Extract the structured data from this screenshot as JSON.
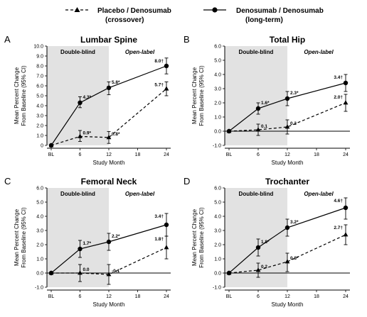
{
  "legend": {
    "series_a": {
      "line1": "Placebo / Denosumab",
      "line2": "(crossover)"
    },
    "series_b": {
      "line1": "Denosumab / Denosumab",
      "line2": "(long-term)"
    }
  },
  "chart_data": [
    {
      "type": "line",
      "letter": "A",
      "title": "Lumbar Spine",
      "xlabel": "Study Month",
      "ylabel": [
        "Mean Percent Change",
        "From Baseline (95% CI)"
      ],
      "categories": [
        "BL",
        "6",
        "12",
        "18",
        "24"
      ],
      "x": [
        0,
        6,
        12,
        18,
        24
      ],
      "ylim": [
        0,
        10
      ],
      "yticks": [
        0,
        1,
        2,
        3,
        4,
        5,
        6,
        7,
        8,
        9,
        10
      ],
      "ytick_labels": [
        "0",
        "1.0",
        "2.0",
        "3.0",
        "4.0",
        "5.0",
        "6.0",
        "7.0",
        "8.0",
        "9.0",
        "10.0"
      ],
      "zero_line": false,
      "regions": [
        "Double-blind",
        "Open-label"
      ],
      "series": [
        {
          "marker": "triangle",
          "style": "dashed",
          "x": [
            0,
            6,
            12,
            24
          ],
          "y": [
            0,
            0.9,
            0.8,
            5.7
          ],
          "ci": [
            null,
            [
              0.4,
              1.5
            ],
            [
              0.2,
              1.4
            ],
            [
              5.0,
              6.4
            ]
          ],
          "labels": [
            "",
            "0.9*",
            "0.8*",
            "5.7†"
          ]
        },
        {
          "marker": "circle",
          "style": "solid",
          "x": [
            0,
            6,
            12,
            24
          ],
          "y": [
            0,
            4.3,
            5.8,
            8.0
          ],
          "ci": [
            null,
            [
              3.8,
              4.9
            ],
            [
              5.1,
              6.4
            ],
            [
              7.2,
              8.8
            ]
          ],
          "labels": [
            "",
            "4.3*",
            "5.8*",
            "8.0†"
          ]
        }
      ]
    },
    {
      "type": "line",
      "letter": "B",
      "title": "Total Hip",
      "xlabel": "Study Month",
      "ylabel": [
        "Mean Percent Change",
        "From Baseline (95% CI)"
      ],
      "categories": [
        "BL",
        "6",
        "12",
        "18",
        "24"
      ],
      "x": [
        0,
        6,
        12,
        18,
        24
      ],
      "ylim": [
        -1,
        6
      ],
      "yticks": [
        -1,
        0,
        1,
        2,
        3,
        4,
        5,
        6
      ],
      "ytick_labels": [
        "-1.0",
        "0.0",
        "1.0",
        "2.0",
        "3.0",
        "4.0",
        "5.0",
        "6.0"
      ],
      "zero_line": true,
      "regions": [
        "Double-blind",
        "Open-label"
      ],
      "series": [
        {
          "marker": "triangle",
          "style": "dashed",
          "x": [
            0,
            6,
            12,
            24
          ],
          "y": [
            0,
            0.1,
            0.3,
            2.0
          ],
          "ci": [
            null,
            [
              -0.3,
              0.5
            ],
            [
              -0.2,
              0.8
            ],
            [
              1.4,
              2.6
            ]
          ],
          "labels": [
            "",
            "0.1",
            "0.3",
            "2.0†"
          ]
        },
        {
          "marker": "circle",
          "style": "solid",
          "x": [
            0,
            6,
            12,
            24
          ],
          "y": [
            0,
            1.6,
            2.3,
            3.4
          ],
          "ci": [
            null,
            [
              1.2,
              2.0
            ],
            [
              1.8,
              2.8
            ],
            [
              2.8,
              4.0
            ]
          ],
          "labels": [
            "",
            "1.6*",
            "2.3*",
            "3.4†"
          ]
        }
      ]
    },
    {
      "type": "line",
      "letter": "C",
      "title": "Femoral Neck",
      "xlabel": "Study Month",
      "ylabel": [
        "Mean Percent Change",
        "From Baseline (95% CI)"
      ],
      "categories": [
        "BL",
        "6",
        "12",
        "18",
        "24"
      ],
      "x": [
        0,
        6,
        12,
        18,
        24
      ],
      "ylim": [
        -1,
        6
      ],
      "yticks": [
        -1,
        0,
        1,
        2,
        3,
        4,
        5,
        6
      ],
      "ytick_labels": [
        "-1.0",
        "0.0",
        "1.0",
        "2.0",
        "3.0",
        "4.0",
        "5.0",
        "6.0"
      ],
      "zero_line": true,
      "regions": [
        "Double-blind",
        "Open-label"
      ],
      "series": [
        {
          "marker": "triangle",
          "style": "dashed",
          "x": [
            0,
            6,
            12,
            24
          ],
          "y": [
            0,
            0.0,
            -0.1,
            1.8
          ],
          "ci": [
            null,
            [
              -0.6,
              0.6
            ],
            [
              -0.8,
              0.6
            ],
            [
              1.0,
              2.6
            ]
          ],
          "labels": [
            "",
            "0.0",
            "-0.1",
            "1.8†"
          ]
        },
        {
          "marker": "circle",
          "style": "solid",
          "x": [
            0,
            6,
            12,
            24
          ],
          "y": [
            0,
            1.7,
            2.2,
            3.4
          ],
          "ci": [
            null,
            [
              1.1,
              2.3
            ],
            [
              1.6,
              2.8
            ],
            [
              2.6,
              4.2
            ]
          ],
          "labels": [
            "",
            "1.7*",
            "2.2*",
            "3.4†"
          ]
        }
      ]
    },
    {
      "type": "line",
      "letter": "D",
      "title": "Trochanter",
      "xlabel": "Study Month",
      "ylabel": [
        "Mean Percent Change",
        "From Baseline (95% CI)"
      ],
      "categories": [
        "BL",
        "6",
        "12",
        "18",
        "24"
      ],
      "x": [
        0,
        6,
        12,
        18,
        24
      ],
      "ylim": [
        -1,
        6
      ],
      "yticks": [
        -1,
        0,
        1,
        2,
        3,
        4,
        5,
        6
      ],
      "ytick_labels": [
        "-1.0",
        "0.0",
        "1.0",
        "2.0",
        "3.0",
        "4.0",
        "5.0",
        "6.0"
      ],
      "zero_line": true,
      "regions": [
        "Double-blind",
        "Open-label"
      ],
      "series": [
        {
          "marker": "triangle",
          "style": "dashed",
          "x": [
            0,
            6,
            12,
            24
          ],
          "y": [
            0,
            0.2,
            0.8,
            2.7
          ],
          "ci": [
            null,
            [
              -0.3,
              0.7
            ],
            [
              0.1,
              1.4
            ],
            [
              2.0,
              3.4
            ]
          ],
          "labels": [
            "",
            "0.2",
            "0.8*",
            "2.7†"
          ]
        },
        {
          "marker": "circle",
          "style": "solid",
          "x": [
            0,
            6,
            12,
            24
          ],
          "y": [
            0,
            1.8,
            3.2,
            4.6
          ],
          "ci": [
            null,
            [
              1.2,
              2.4
            ],
            [
              2.6,
              3.8
            ],
            [
              3.8,
              5.3
            ]
          ],
          "labels": [
            "",
            "1.8*",
            "3.2*",
            "4.6†"
          ]
        }
      ]
    }
  ],
  "colors": {
    "ink": "#000000",
    "shade": "#e2e2e2"
  }
}
